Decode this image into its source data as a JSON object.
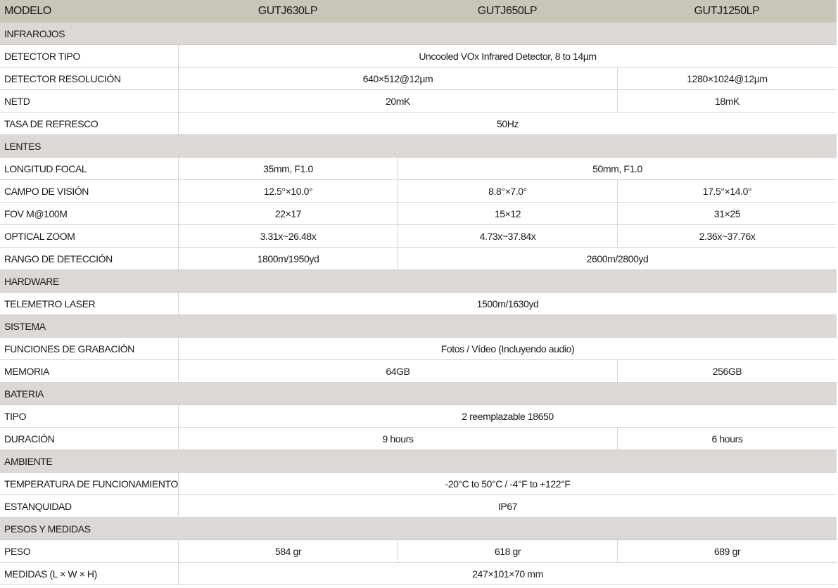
{
  "header": {
    "label": "MODELO",
    "models": [
      "GUTJ630LP",
      "GUTJ650LP",
      "GUTJ1250LP"
    ]
  },
  "colors": {
    "header_bg": "#c9c5b9",
    "section_bg": "#dcd8d6"
  },
  "rows": [
    {
      "section": "INFRAROJOS"
    },
    {
      "label": "DETECTOR TIPO",
      "cells": [
        {
          "text": "Uncooled VOx Infrared Detector, 8 to 14µm",
          "span": 3
        }
      ]
    },
    {
      "label": "DETECTOR RESOLUCIÓN",
      "cells": [
        {
          "text": "640×512@12µm",
          "span": 2
        },
        {
          "text": "1280×1024@12µm",
          "span": 1
        }
      ]
    },
    {
      "label": "NETD",
      "cells": [
        {
          "text": "20mK",
          "span": 2
        },
        {
          "text": "18mK",
          "span": 1
        }
      ]
    },
    {
      "label": "TASA DE REFRESCO",
      "cells": [
        {
          "text": "50Hz",
          "span": 3
        }
      ]
    },
    {
      "section": "LENTES"
    },
    {
      "label": "LONGITUD FOCAL",
      "cells": [
        {
          "text": "35mm, F1.0",
          "span": 1
        },
        {
          "text": "50mm, F1.0",
          "span": 2
        }
      ]
    },
    {
      "label": "CAMPO DE VISIÓN",
      "cells": [
        {
          "text": "12.5°×10.0°",
          "span": 1
        },
        {
          "text": "8.8°×7.0°",
          "span": 1
        },
        {
          "text": "17.5°×14.0°",
          "span": 1
        }
      ]
    },
    {
      "label": "FOV M@100M",
      "cells": [
        {
          "text": "22×17",
          "span": 1
        },
        {
          "text": "15×12",
          "span": 1
        },
        {
          "text": "31×25",
          "span": 1
        }
      ]
    },
    {
      "label": "OPTICAL ZOOM",
      "cells": [
        {
          "text": "3.31x~26.48x",
          "span": 1
        },
        {
          "text": "4.73x~37.84x",
          "span": 1
        },
        {
          "text": "2.36x~37.76x",
          "span": 1
        }
      ]
    },
    {
      "label": "RANGO DE DETECCIÓN",
      "cells": [
        {
          "text": "1800m/1950yd",
          "span": 1
        },
        {
          "text": "2600m/2800yd",
          "span": 2
        }
      ]
    },
    {
      "section": "HARDWARE"
    },
    {
      "label": "TELEMETRO LASER",
      "cells": [
        {
          "text": "1500m/1630yd",
          "span": 3
        }
      ]
    },
    {
      "section": "SISTEMA"
    },
    {
      "label": "FUNCIONES DE GRABACIÓN",
      "cells": [
        {
          "text": "Fotos / Vídeo (Incluyendo audio)",
          "span": 3
        }
      ]
    },
    {
      "label": "MEMORIA",
      "cells": [
        {
          "text": "64GB",
          "span": 2
        },
        {
          "text": "256GB",
          "span": 1
        }
      ]
    },
    {
      "section": "BATERIA"
    },
    {
      "label": "TIPO",
      "cells": [
        {
          "text": "2 reemplazable 18650",
          "span": 3
        }
      ]
    },
    {
      "label": "DURACIÓN",
      "cells": [
        {
          "text": "9 hours",
          "span": 2
        },
        {
          "text": "6 hours",
          "span": 1
        }
      ]
    },
    {
      "section": "AMBIENTE"
    },
    {
      "label": "TEMPERATURA DE FUNCIONAMIENTO",
      "cells": [
        {
          "text": "-20°C to 50°C / -4°F to +122°F",
          "span": 3
        }
      ]
    },
    {
      "label": "ESTANQUIDAD",
      "cells": [
        {
          "text": "IP67",
          "span": 3
        }
      ]
    },
    {
      "section": "PESOS Y MEDIDAS"
    },
    {
      "label": "PESO",
      "cells": [
        {
          "text": "584 gr",
          "span": 1
        },
        {
          "text": "618 gr",
          "span": 1
        },
        {
          "text": "689 gr",
          "span": 1
        }
      ]
    },
    {
      "label": "MEDIDAS (L × W × H)",
      "cells": [
        {
          "text": "247×101×70 mm",
          "span": 3
        }
      ]
    }
  ]
}
